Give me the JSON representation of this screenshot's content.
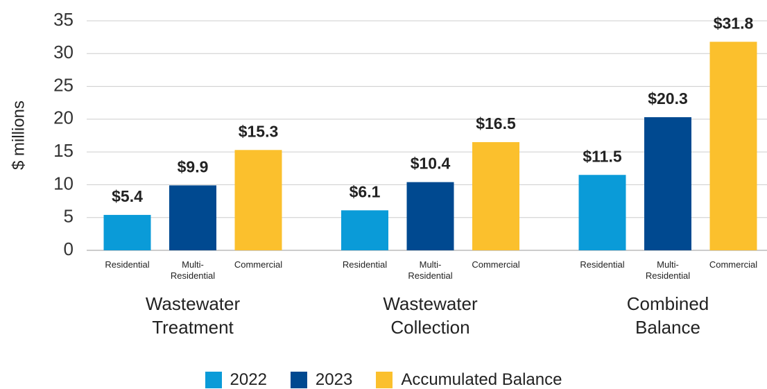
{
  "chart_data": {
    "type": "bar",
    "ylabel": "$ millions",
    "categories": [
      "Wastewater Treatment",
      "Wastewater Collection",
      "Combined Balance"
    ],
    "bar_labels": [
      "Residential",
      "Multi-Residential",
      "Commercial"
    ],
    "series": [
      {
        "name": "2022",
        "color": "#0a9bd8",
        "values": [
          5.4,
          6.1,
          11.5
        ],
        "value_labels": [
          "$5.4",
          "$6.1",
          "$11.5"
        ]
      },
      {
        "name": "2023",
        "color": "#004990",
        "values": [
          9.9,
          10.4,
          20.3
        ],
        "value_labels": [
          "$9.9",
          "$10.4",
          "$20.3"
        ]
      },
      {
        "name": "Accumulated Balance",
        "color": "#fbc02d",
        "values": [
          15.3,
          16.5,
          31.8
        ],
        "value_labels": [
          "$15.3",
          "$16.5",
          "$31.8"
        ]
      }
    ],
    "ylim": [
      0,
      35
    ],
    "yticks": [
      0,
      5,
      10,
      15,
      20,
      25,
      30,
      35
    ],
    "grid": true,
    "legend": "bottom"
  }
}
